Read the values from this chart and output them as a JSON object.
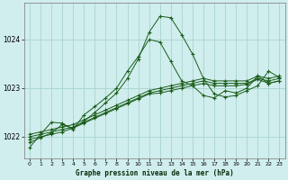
{
  "title": "Graphe pression niveau de la mer (hPa)",
  "bg_color": "#d0eeed",
  "grid_color": "#a8d4cc",
  "line_color": "#1a5c1a",
  "marker_color": "#1a5c1a",
  "xlim": [
    -0.5,
    23.5
  ],
  "ylim": [
    1021.55,
    1024.75
  ],
  "yticks": [
    1022,
    1023,
    1024
  ],
  "xticks": [
    0,
    1,
    2,
    3,
    4,
    5,
    6,
    7,
    8,
    9,
    10,
    11,
    12,
    13,
    14,
    15,
    16,
    17,
    18,
    19,
    20,
    21,
    22,
    23
  ],
  "series": [
    [
      1021.78,
      1022.05,
      1022.3,
      1022.28,
      1022.15,
      1022.45,
      1022.62,
      1022.8,
      1023.0,
      1023.35,
      1023.65,
      1024.0,
      1023.95,
      1023.55,
      1023.15,
      1023.05,
      1022.85,
      1022.8,
      1022.95,
      1022.9,
      1023.0,
      1023.25,
      1023.1,
      1023.15
    ],
    [
      1022.0,
      1022.05,
      1022.1,
      1022.15,
      1022.2,
      1022.3,
      1022.4,
      1022.5,
      1022.6,
      1022.7,
      1022.8,
      1022.9,
      1022.95,
      1023.0,
      1023.05,
      1023.1,
      1023.15,
      1023.1,
      1023.1,
      1023.1,
      1023.1,
      1023.2,
      1023.15,
      1023.2
    ],
    [
      1022.05,
      1022.1,
      1022.15,
      1022.2,
      1022.25,
      1022.35,
      1022.45,
      1022.55,
      1022.65,
      1022.75,
      1022.85,
      1022.95,
      1023.0,
      1023.05,
      1023.1,
      1023.15,
      1023.2,
      1023.15,
      1023.15,
      1023.15,
      1023.15,
      1023.25,
      1023.2,
      1023.25
    ],
    [
      1021.95,
      1022.0,
      1022.05,
      1022.1,
      1022.18,
      1022.28,
      1022.38,
      1022.48,
      1022.58,
      1022.68,
      1022.78,
      1022.88,
      1022.9,
      1022.95,
      1023.0,
      1023.05,
      1023.1,
      1023.05,
      1023.05,
      1023.05,
      1023.08,
      1023.18,
      1023.1,
      1023.15
    ],
    [
      1021.88,
      1021.98,
      1022.08,
      1022.25,
      1022.18,
      1022.32,
      1022.5,
      1022.7,
      1022.9,
      1023.2,
      1023.6,
      1024.15,
      1024.48,
      1024.45,
      1024.1,
      1023.7,
      1023.2,
      1022.88,
      1022.82,
      1022.85,
      1022.95,
      1023.05,
      1023.35,
      1023.22
    ]
  ]
}
